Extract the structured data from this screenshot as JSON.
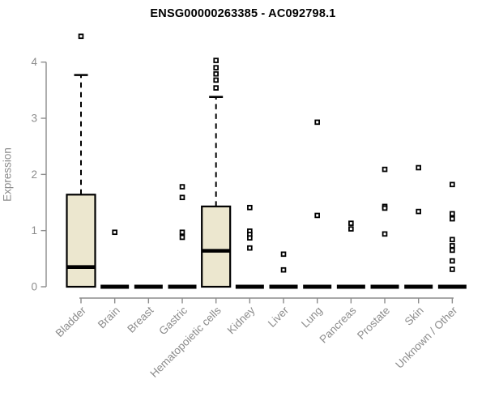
{
  "page": {
    "background": "#ffffff"
  },
  "chart_data": {
    "type": "boxplot",
    "title": "ENSG00000263385 - AC092798.1",
    "ylabel": "Expression",
    "xlabel": "",
    "ylim": [
      0,
      4.6
    ],
    "yticks": [
      0,
      1,
      2,
      3,
      4
    ],
    "grid": false,
    "legend": "none",
    "colors": {
      "box_fill": "#ece7cf",
      "box_stroke": "#000000",
      "median": "#000000",
      "whisker": "#000000",
      "outlier_stroke": "#000000",
      "outlier_fill": "#ffffff",
      "axis": "#8c8c8c",
      "tick_label": "#8c8c8c"
    },
    "categories": [
      "Bladder",
      "Brain",
      "Breast",
      "Gastric",
      "Hematopoietic cells",
      "Kidney",
      "Liver",
      "Lung",
      "Pancreas",
      "Prostate",
      "Skin",
      "Unknown / Other"
    ],
    "series": [
      {
        "name": "Bladder",
        "q1": 0,
        "median": 0.35,
        "q3": 1.64,
        "whisker_low": 0,
        "whisker_high": 3.77,
        "outliers": [
          4.46
        ]
      },
      {
        "name": "Brain",
        "q1": 0,
        "median": 0,
        "q3": 0,
        "whisker_low": 0,
        "whisker_high": 0,
        "outliers": [
          0.97
        ]
      },
      {
        "name": "Breast",
        "q1": 0,
        "median": 0,
        "q3": 0,
        "whisker_low": 0,
        "whisker_high": 0,
        "outliers": []
      },
      {
        "name": "Gastric",
        "q1": 0,
        "median": 0,
        "q3": 0,
        "whisker_low": 0,
        "whisker_high": 0,
        "outliers": [
          1.78,
          1.59,
          0.97,
          0.88
        ]
      },
      {
        "name": "Hematopoietic cells",
        "q1": 0,
        "median": 0.64,
        "q3": 1.43,
        "whisker_low": 0,
        "whisker_high": 3.38,
        "outliers": [
          4.03,
          3.9,
          3.79,
          3.68,
          3.54
        ]
      },
      {
        "name": "Kidney",
        "q1": 0,
        "median": 0,
        "q3": 0,
        "whisker_low": 0,
        "whisker_high": 0,
        "outliers": [
          1.41,
          0.99,
          0.93,
          0.87,
          0.69
        ]
      },
      {
        "name": "Liver",
        "q1": 0,
        "median": 0,
        "q3": 0,
        "whisker_low": 0,
        "whisker_high": 0,
        "outliers": [
          0.58,
          0.3
        ]
      },
      {
        "name": "Lung",
        "q1": 0,
        "median": 0,
        "q3": 0,
        "whisker_low": 0,
        "whisker_high": 0,
        "outliers": [
          2.93,
          1.27
        ]
      },
      {
        "name": "Pancreas",
        "q1": 0,
        "median": 0,
        "q3": 0,
        "whisker_low": 0,
        "whisker_high": 0,
        "outliers": [
          1.13,
          1.03
        ]
      },
      {
        "name": "Prostate",
        "q1": 0,
        "median": 0,
        "q3": 0,
        "whisker_low": 0,
        "whisker_high": 0,
        "outliers": [
          2.09,
          1.43,
          1.4,
          0.94
        ]
      },
      {
        "name": "Skin",
        "q1": 0,
        "median": 0,
        "q3": 0,
        "whisker_low": 0,
        "whisker_high": 0,
        "outliers": [
          2.12,
          1.34
        ]
      },
      {
        "name": "Unknown / Other",
        "q1": 0,
        "median": 0,
        "q3": 0,
        "whisker_low": 0,
        "whisker_high": 0,
        "outliers": [
          1.82,
          1.3,
          1.21,
          0.84,
          0.73,
          0.65,
          0.46,
          0.31
        ]
      }
    ]
  }
}
